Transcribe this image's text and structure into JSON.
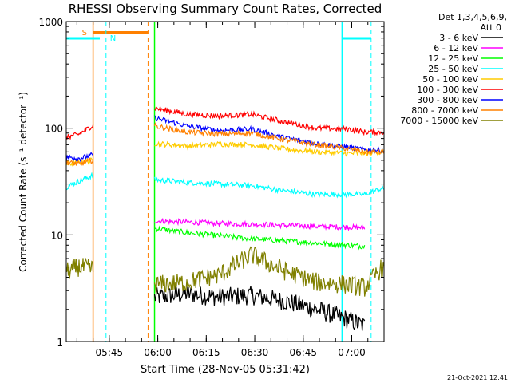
{
  "chart_data": {
    "type": "line",
    "title": "RHESSI Observing Summary Count Rates, Corrected",
    "xlabel": "Start Time (28-Nov-05 05:31:42)",
    "ylabel": "Corrected Count Rate (s⁻¹ detector⁻¹)",
    "ylim": [
      1,
      1000
    ],
    "y_scale": "log",
    "xlim": [
      "05:31:42",
      "07:10:00"
    ],
    "x_ticks": [
      "05:45",
      "06:00",
      "06:15",
      "06:30",
      "06:45",
      "07:00"
    ],
    "y_ticks": [
      "1",
      "10",
      "100",
      "1000"
    ],
    "grid": false,
    "legend_title": [
      "Det 1,3,4,5,6,9,",
      "Att 0"
    ],
    "timestamp": "21-Oct-2021 12:41",
    "markers": [
      {
        "label": "S",
        "color": "#ff8000",
        "style": "solid",
        "time": "05:40"
      },
      {
        "label": "N",
        "color": "#00ffff",
        "style": "dashed",
        "time": "05:44"
      }
    ],
    "series": [
      {
        "name": "3 - 6 keV",
        "color": "#000000",
        "segments": [
          {
            "start": "05:59",
            "end": "07:04",
            "points": [
              [
                0,
                2.6
              ],
              [
                10,
                2.8
              ],
              [
                20,
                2.6
              ],
              [
                30,
                2.7
              ],
              [
                40,
                2.4
              ],
              [
                50,
                2.0
              ],
              [
                60,
                1.6
              ],
              [
                65,
                1.4
              ]
            ]
          }
        ]
      },
      {
        "name": "6 - 12 keV",
        "color": "#ff00ff",
        "segments": [
          {
            "start": "05:59",
            "end": "07:04",
            "points": [
              [
                0,
                13.5
              ],
              [
                10,
                13.2
              ],
              [
                20,
                12.8
              ],
              [
                30,
                12.6
              ],
              [
                40,
                12.3
              ],
              [
                50,
                12.0
              ],
              [
                60,
                11.8
              ],
              [
                65,
                11.7
              ]
            ]
          }
        ]
      },
      {
        "name": "12 - 25 keV",
        "color": "#00ff00",
        "segments": [
          {
            "start": "05:59",
            "end": "07:04",
            "points": [
              [
                0,
                11.5
              ],
              [
                10,
                10.5
              ],
              [
                20,
                9.8
              ],
              [
                30,
                9.2
              ],
              [
                40,
                8.8
              ],
              [
                50,
                8.4
              ],
              [
                60,
                8.0
              ],
              [
                65,
                7.8
              ]
            ]
          }
        ]
      },
      {
        "name": "25 - 50 keV",
        "color": "#00ffff",
        "segments": [
          {
            "start": "05:31:42",
            "end": "05:40",
            "points": [
              [
                0,
                28
              ],
              [
                4,
                32
              ],
              [
                8,
                36
              ]
            ]
          },
          {
            "start": "05:59",
            "end": "07:10",
            "points": [
              [
                0,
                33
              ],
              [
                10,
                31
              ],
              [
                20,
                30
              ],
              [
                30,
                29
              ],
              [
                40,
                26
              ],
              [
                50,
                24
              ],
              [
                60,
                24
              ],
              [
                65,
                24
              ],
              [
                70,
                27
              ]
            ]
          }
        ]
      },
      {
        "name": "50 - 100 keV",
        "color": "#ffcc00",
        "segments": [
          {
            "start": "05:31:42",
            "end": "05:40",
            "points": [
              [
                0,
                46
              ],
              [
                4,
                48
              ],
              [
                8,
                50
              ]
            ]
          },
          {
            "start": "05:59",
            "end": "07:10",
            "points": [
              [
                0,
                72
              ],
              [
                10,
                68
              ],
              [
                20,
                71
              ],
              [
                30,
                70
              ],
              [
                40,
                64
              ],
              [
                50,
                60
              ],
              [
                60,
                58
              ],
              [
                65,
                58
              ],
              [
                70,
                60
              ]
            ]
          }
        ]
      },
      {
        "name": "100 - 300 keV",
        "color": "#ff0000",
        "segments": [
          {
            "start": "05:31:42",
            "end": "05:40",
            "points": [
              [
                0,
                82
              ],
              [
                4,
                88
              ],
              [
                8,
                105
              ]
            ]
          },
          {
            "start": "05:59",
            "end": "07:10",
            "points": [
              [
                0,
                155
              ],
              [
                10,
                135
              ],
              [
                20,
                130
              ],
              [
                30,
                135
              ],
              [
                40,
                115
              ],
              [
                50,
                100
              ],
              [
                60,
                98
              ],
              [
                65,
                92
              ],
              [
                70,
                92
              ]
            ]
          }
        ]
      },
      {
        "name": "300 - 800 keV",
        "color": "#0000ff",
        "segments": [
          {
            "start": "05:31:42",
            "end": "05:40",
            "points": [
              [
                0,
                54
              ],
              [
                4,
                52
              ],
              [
                8,
                56
              ]
            ]
          },
          {
            "start": "05:59",
            "end": "07:10",
            "points": [
              [
                0,
                125
              ],
              [
                10,
                105
              ],
              [
                20,
                95
              ],
              [
                30,
                98
              ],
              [
                40,
                82
              ],
              [
                50,
                72
              ],
              [
                60,
                66
              ],
              [
                65,
                63
              ],
              [
                70,
                62
              ]
            ]
          }
        ]
      },
      {
        "name": "800 - 7000 keV",
        "color": "#ff8000",
        "segments": [
          {
            "start": "05:31:42",
            "end": "05:40",
            "points": [
              [
                0,
                48
              ],
              [
                4,
                46
              ],
              [
                8,
                50
              ]
            ]
          },
          {
            "start": "05:59",
            "end": "07:10",
            "points": [
              [
                0,
                105
              ],
              [
                10,
                92
              ],
              [
                20,
                88
              ],
              [
                30,
                90
              ],
              [
                40,
                78
              ],
              [
                50,
                70
              ],
              [
                60,
                64
              ],
              [
                65,
                60
              ],
              [
                70,
                60
              ]
            ]
          }
        ]
      },
      {
        "name": "7000 - 15000 keV",
        "color": "#808000",
        "segments": [
          {
            "start": "05:31:42",
            "end": "05:40",
            "points": [
              [
                0,
                4.5
              ],
              [
                4,
                5
              ],
              [
                8,
                4.8
              ]
            ]
          },
          {
            "start": "05:59",
            "end": "07:10",
            "points": [
              [
                0,
                3.4
              ],
              [
                10,
                3.6
              ],
              [
                20,
                4.2
              ],
              [
                30,
                6.5
              ],
              [
                40,
                4.6
              ],
              [
                50,
                3.6
              ],
              [
                60,
                3.4
              ],
              [
                65,
                3.2
              ],
              [
                70,
                4.8
              ]
            ]
          }
        ]
      }
    ]
  },
  "colors": {
    "saa_marker": "#ff8000",
    "night_marker": "#00ffff",
    "green_marker": "#00ff00"
  }
}
